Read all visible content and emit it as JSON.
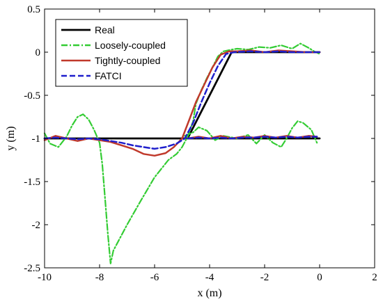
{
  "chart_data": {
    "type": "line",
    "title": "",
    "xlabel": "x (m)",
    "ylabel": "y (m)",
    "xlim": [
      -10,
      2
    ],
    "ylim": [
      -2.5,
      0.5
    ],
    "xticks": [
      -10,
      -8,
      -6,
      -4,
      -2,
      0,
      2
    ],
    "xtick_labels": [
      "-10",
      "-8",
      "-6",
      "-4",
      "-2",
      "0",
      "2"
    ],
    "yticks": [
      -2.5,
      -2,
      -1.5,
      -1,
      -0.5,
      0,
      0.5
    ],
    "ytick_labels": [
      "-2.5",
      "-2",
      "-1.5",
      "-1",
      "-0.5",
      "0",
      "0.5"
    ],
    "grid": false,
    "legend_position": "top-left",
    "series": [
      {
        "name": "Real",
        "color": "#000000",
        "dash": "solid",
        "x": [
          -10,
          -4.8,
          -3.2,
          0,
          null,
          -10,
          0
        ],
        "y": [
          -1,
          -1,
          0,
          0,
          null,
          -1,
          -1
        ]
      },
      {
        "name": "Loosely-coupled",
        "color": "#33cc33",
        "dash": "dashdot",
        "x": [
          -10,
          -9.8,
          -9.5,
          -9.2,
          -9.0,
          -8.8,
          -8.6,
          -8.4,
          -8.2,
          -8.0,
          -7.9,
          -7.8,
          -7.7,
          -7.6,
          -7.5,
          -7.0,
          -6.5,
          -6.0,
          -5.5,
          -5.2,
          -5.0,
          -4.8,
          -4.6,
          -4.5,
          -4.3,
          -4.1,
          -3.9,
          -3.7,
          -3.5,
          -3.2,
          -3.0,
          -2.6,
          -2.2,
          -1.8,
          -1.4,
          -1.0,
          -0.7,
          -0.4,
          -0.2,
          0,
          null,
          -4.9,
          -4.6,
          -4.4,
          -4.1,
          -3.8,
          -3.5,
          -3.0,
          -2.6,
          -2.3,
          -2.0,
          -1.7,
          -1.4,
          -1.2,
          -1.0,
          -0.8,
          -0.6,
          -0.3,
          -0.1
        ],
        "y": [
          -0.94,
          -1.06,
          -1.1,
          -0.98,
          -0.85,
          -0.75,
          -0.72,
          -0.78,
          -0.9,
          -1.05,
          -1.3,
          -1.7,
          -2.1,
          -2.45,
          -2.3,
          -2.0,
          -1.72,
          -1.45,
          -1.25,
          -1.18,
          -1.1,
          -0.98,
          -0.8,
          -0.6,
          -0.44,
          -0.3,
          -0.18,
          -0.05,
          0.01,
          0.03,
          0.04,
          0.03,
          0.06,
          0.05,
          0.08,
          0.04,
          0.1,
          0.05,
          0.01,
          -0.02,
          null,
          -0.97,
          -0.93,
          -0.87,
          -0.91,
          -1.02,
          -0.97,
          -1.0,
          -0.96,
          -1.06,
          -0.96,
          -1.05,
          -1.1,
          -1.0,
          -0.88,
          -0.8,
          -0.82,
          -0.9,
          -1.05
        ]
      },
      {
        "name": "Tightly-coupled",
        "color": "#c0392b",
        "dash": "solid",
        "x": [
          -10,
          -9.6,
          -9.2,
          -8.8,
          -8.4,
          -8.0,
          -7.6,
          -7.2,
          -6.8,
          -6.4,
          -6.0,
          -5.6,
          -5.3,
          -5.0,
          -4.7,
          -4.5,
          -4.2,
          -3.9,
          -3.6,
          -3.3,
          -3.0,
          -2.5,
          -2.0,
          -1.5,
          -1.0,
          -0.5,
          0,
          null,
          -4.8,
          -4.4,
          -4.0,
          -3.6,
          -3.2,
          -2.8,
          -2.4,
          -2.0,
          -1.6,
          -1.2,
          -0.8,
          -0.4,
          -0.1
        ],
        "y": [
          -1.02,
          -0.97,
          -1.0,
          -1.03,
          -1.0,
          -1.02,
          -1.04,
          -1.08,
          -1.12,
          -1.18,
          -1.2,
          -1.17,
          -1.1,
          -1.0,
          -0.75,
          -0.58,
          -0.38,
          -0.18,
          -0.03,
          0.01,
          0.01,
          0.02,
          0.0,
          0.02,
          0.01,
          0.0,
          0.0,
          null,
          -1.0,
          -0.98,
          -1.0,
          -0.97,
          -1.0,
          -0.98,
          -0.99,
          -0.97,
          -0.99,
          -0.97,
          -0.99,
          -0.97,
          -0.98
        ]
      },
      {
        "name": "FATCI",
        "color": "#1f1fcc",
        "dash": "dashed",
        "x": [
          -10,
          -9.6,
          -9.2,
          -8.8,
          -8.4,
          -8.0,
          -7.6,
          -7.2,
          -6.8,
          -6.4,
          -6.0,
          -5.6,
          -5.2,
          -4.9,
          -4.6,
          -4.3,
          -4.0,
          -3.7,
          -3.4,
          -3.1,
          -2.5,
          -2.0,
          -1.5,
          -1.0,
          -0.5,
          0,
          null,
          -4.8,
          -4.4,
          -4.0,
          -3.6,
          -3.2,
          -2.8,
          -2.4,
          -2.0,
          -1.6,
          -1.2,
          -0.8,
          -0.4,
          -0.1
        ],
        "y": [
          -1.0,
          -0.99,
          -1.0,
          -1.01,
          -1.0,
          -1.01,
          -1.03,
          -1.05,
          -1.08,
          -1.1,
          -1.12,
          -1.1,
          -1.06,
          -1.0,
          -0.82,
          -0.58,
          -0.36,
          -0.16,
          -0.02,
          0.0,
          0.01,
          0.0,
          0.01,
          0.0,
          0.0,
          0.0,
          null,
          -1.0,
          -0.99,
          -1.0,
          -0.99,
          -1.0,
          -0.99,
          -0.99,
          -0.98,
          -0.99,
          -0.98,
          -0.99,
          -0.98,
          -0.98
        ]
      }
    ]
  }
}
